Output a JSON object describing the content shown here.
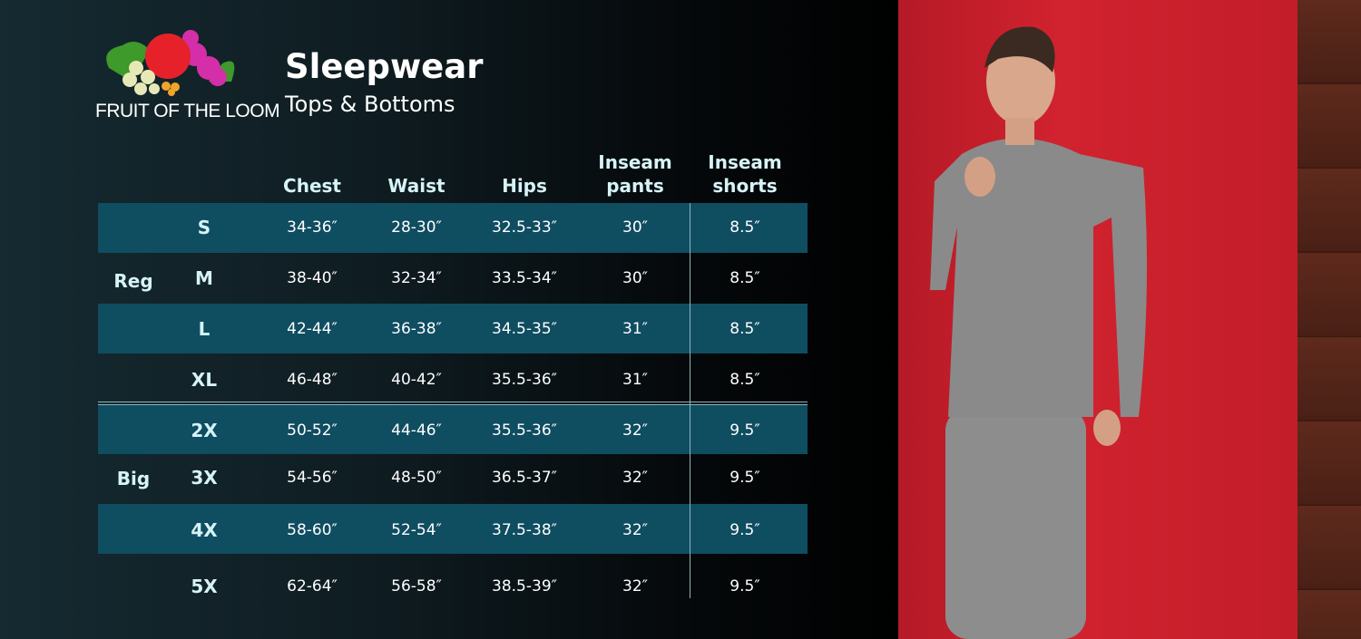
{
  "brand": {
    "name": "FRUIT OF THE LOOM"
  },
  "header": {
    "title": "Sleepwear",
    "subtitle": "Tops & Bottoms"
  },
  "table": {
    "columns": [
      "Chest",
      "Waist",
      "Hips",
      "Inseam pants",
      "Inseam shorts"
    ],
    "column_lines": [
      [
        "Chest"
      ],
      [
        "Waist"
      ],
      [
        "Hips"
      ],
      [
        "Inseam",
        "pants"
      ],
      [
        "Inseam",
        "shorts"
      ]
    ],
    "groups": [
      "Reg",
      "Big"
    ],
    "rows": [
      {
        "size": "S",
        "chest": "34-36″",
        "waist": "28-30″",
        "hips": "32.5-33″",
        "pants": "30″",
        "shorts": "8.5″"
      },
      {
        "size": "M",
        "chest": "38-40″",
        "waist": "32-34″",
        "hips": "33.5-34″",
        "pants": "30″",
        "shorts": "8.5″"
      },
      {
        "size": "L",
        "chest": "42-44″",
        "waist": "36-38″",
        "hips": "34.5-35″",
        "pants": "31″",
        "shorts": "8.5″"
      },
      {
        "size": "XL",
        "chest": "46-48″",
        "waist": "40-42″",
        "hips": "35.5-36″",
        "pants": "31″",
        "shorts": "8.5″"
      },
      {
        "size": "2X",
        "chest": "50-52″",
        "waist": "44-46″",
        "hips": "35.5-36″",
        "pants": "32″",
        "shorts": "9.5″"
      },
      {
        "size": "3X",
        "chest": "54-56″",
        "waist": "48-50″",
        "hips": "36.5-37″",
        "pants": "32″",
        "shorts": "9.5″"
      },
      {
        "size": "4X",
        "chest": "58-60″",
        "waist": "52-54″",
        "hips": "37.5-38″",
        "pants": "32″",
        "shorts": "9.5″"
      },
      {
        "size": "5X",
        "chest": "62-64″",
        "waist": "56-58″",
        "hips": "38.5-39″",
        "pants": "32″",
        "shorts": "9.5″"
      }
    ]
  },
  "colors": {
    "band": "#0f4d61",
    "accent_text": "#d6f3f7",
    "wall": "#c81f2c"
  }
}
